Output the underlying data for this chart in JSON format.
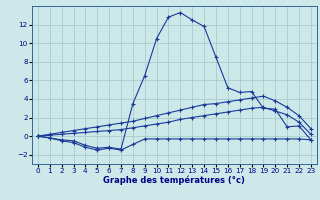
{
  "hours": [
    0,
    1,
    2,
    3,
    4,
    5,
    6,
    7,
    8,
    9,
    10,
    11,
    12,
    13,
    14,
    15,
    16,
    17,
    18,
    19,
    20,
    21,
    22,
    23
  ],
  "line_main": [
    0.0,
    -0.2,
    -0.4,
    -0.5,
    -1.0,
    -1.3,
    -1.2,
    -1.4,
    3.5,
    6.5,
    10.5,
    12.8,
    13.3,
    12.5,
    11.8,
    8.5,
    5.2,
    4.7,
    4.8,
    3.0,
    2.9,
    1.0,
    1.1,
    -0.4
  ],
  "line_upper": [
    0.0,
    0.2,
    0.4,
    0.6,
    0.8,
    1.0,
    1.2,
    1.4,
    1.6,
    1.9,
    2.2,
    2.5,
    2.8,
    3.1,
    3.4,
    3.5,
    3.7,
    3.9,
    4.1,
    4.3,
    3.8,
    3.1,
    2.2,
    0.8
  ],
  "line_mid": [
    0.0,
    0.1,
    0.2,
    0.3,
    0.4,
    0.5,
    0.6,
    0.7,
    0.9,
    1.1,
    1.3,
    1.5,
    1.8,
    2.0,
    2.2,
    2.4,
    2.6,
    2.8,
    3.0,
    3.1,
    2.7,
    2.3,
    1.5,
    0.2
  ],
  "line_min": [
    0.0,
    -0.2,
    -0.5,
    -0.7,
    -1.2,
    -1.5,
    -1.3,
    -1.5,
    -0.9,
    -0.3,
    -0.3,
    -0.3,
    -0.3,
    -0.3,
    -0.3,
    -0.3,
    -0.3,
    -0.3,
    -0.3,
    -0.3,
    -0.3,
    -0.3,
    -0.3,
    -0.4
  ],
  "bg_color": "#cce8e8",
  "grid_color": "#aacccc",
  "line_color": "#1a3a9a",
  "xlabel": "Graphe des températures (°c)",
  "ylim": [
    -3.0,
    14.0
  ],
  "xlim": [
    -0.5,
    23.5
  ],
  "yticks": [
    -2,
    0,
    2,
    4,
    6,
    8,
    10,
    12
  ],
  "xticks": [
    0,
    1,
    2,
    3,
    4,
    5,
    6,
    7,
    8,
    9,
    10,
    11,
    12,
    13,
    14,
    15,
    16,
    17,
    18,
    19,
    20,
    21,
    22,
    23
  ]
}
